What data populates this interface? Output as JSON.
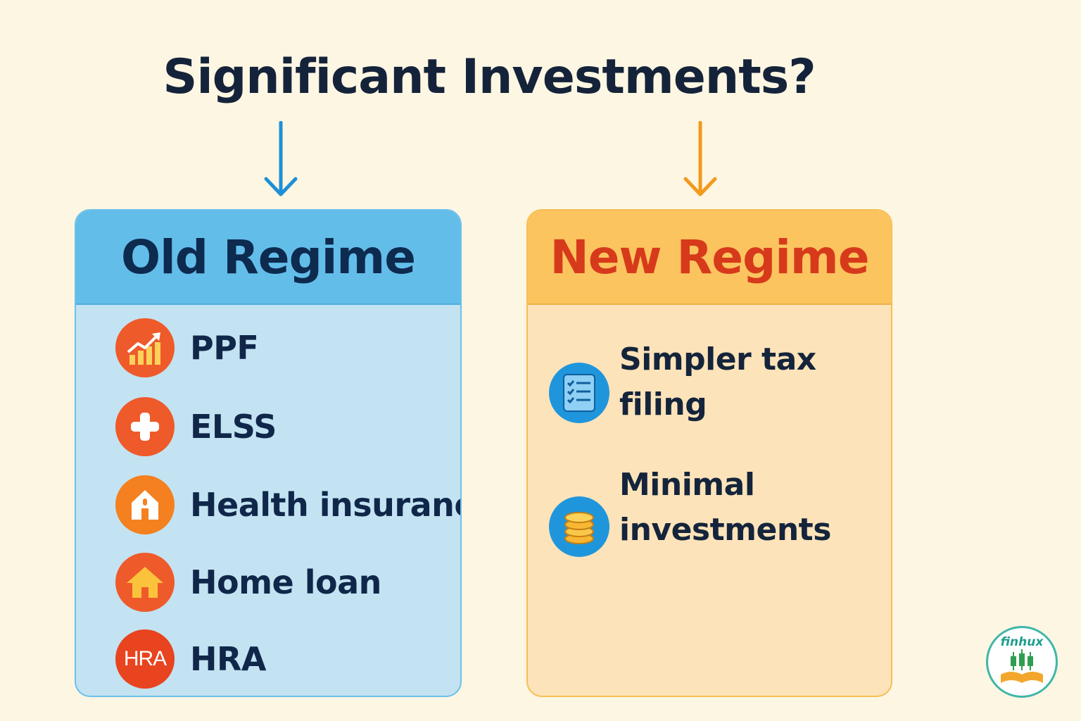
{
  "title": "Significant Investments?",
  "old_regime": {
    "heading": "Old Regime",
    "items": [
      {
        "label": "PPF",
        "icon": "growth-chart-icon",
        "color": "#ef5a2a"
      },
      {
        "label": "ELSS",
        "icon": "plus-icon",
        "color": "#ef5a2a"
      },
      {
        "label": "Health insurance",
        "icon": "house-door-icon",
        "color": "#f4801f"
      },
      {
        "label": "Home loan",
        "icon": "home-icon",
        "color": "#ef5a2a"
      },
      {
        "label": "HRA",
        "icon": "hra-badge-icon",
        "badge_text": "HRA",
        "color": "#e8441f"
      }
    ]
  },
  "new_regime": {
    "heading": "New Regime",
    "items": [
      {
        "label": "Simpler tax filing",
        "icon": "checklist-icon"
      },
      {
        "label_line1": "Minimal",
        "label_line2": "investments",
        "icon": "coins-icon"
      }
    ]
  },
  "logo": {
    "text": "finhux"
  },
  "colors": {
    "background": "#fdf6e3",
    "old_accent": "#63bde9",
    "new_accent": "#fbc45f",
    "new_heading": "#d73a1b",
    "arrow_left": "#1e8fd6",
    "arrow_right": "#f29a1d"
  }
}
